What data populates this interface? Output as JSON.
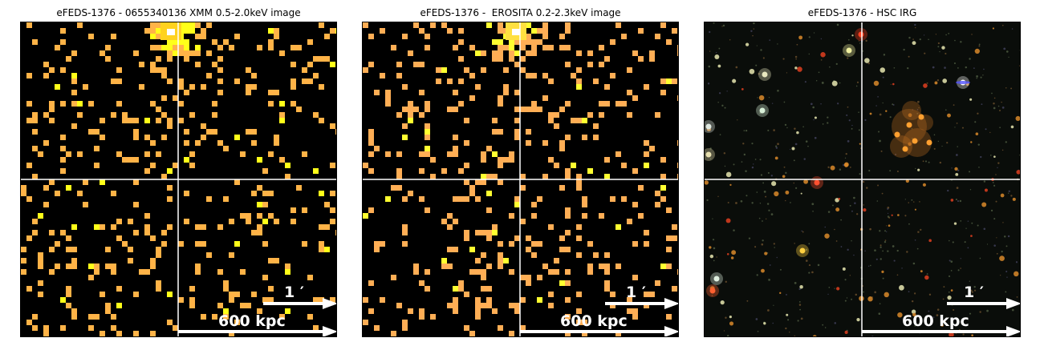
{
  "panels": [
    {
      "id": "xmm",
      "title": "eFEDS-1376 - 0655340136 XMM 0.5-2.0keV image",
      "arc_label": "1 ′",
      "scale_label": "600 kpc",
      "colors": {
        "low": "#ffb347",
        "high": "#ffff19",
        "peak": "#ffd21e",
        "background": "#000000"
      }
    },
    {
      "id": "erosita",
      "title": "eFEDS-1376 -  EROSITA 0.2-2.3keV image",
      "arc_label": "1 ′",
      "scale_label": "600 kpc",
      "colors": {
        "low": "#ffae55",
        "high": "#ffff30",
        "peak": "#ffe040",
        "background": "#000000"
      }
    },
    {
      "id": "hsc",
      "title": "eFEDS-1376 - HSC IRG",
      "arc_label": "1 ′",
      "scale_label": "600 kpc",
      "colors": {
        "background": "#0a0d0a",
        "galaxy": "#d98a2a",
        "star": "#e8e8b0",
        "red": "#e04020"
      }
    }
  ]
}
